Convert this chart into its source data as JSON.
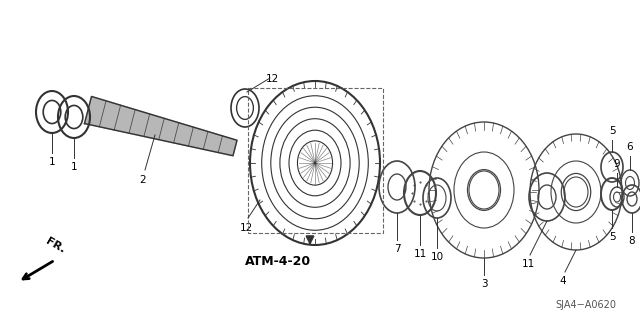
{
  "background_color": "#ffffff",
  "part_label": "SJA4−A0620",
  "atm_label": "ATM-4-20",
  "fr_label": "FR.",
  "fig_width": 6.4,
  "fig_height": 3.19,
  "dpi": 100,
  "xlim": [
    0,
    640
  ],
  "ylim": [
    0,
    319
  ],
  "shaft_color": "#555555",
  "line_color": "#333333",
  "gear_color": "#444444",
  "label_fontsize": 7.5,
  "atm_fontsize": 9,
  "part_fontsize": 7
}
